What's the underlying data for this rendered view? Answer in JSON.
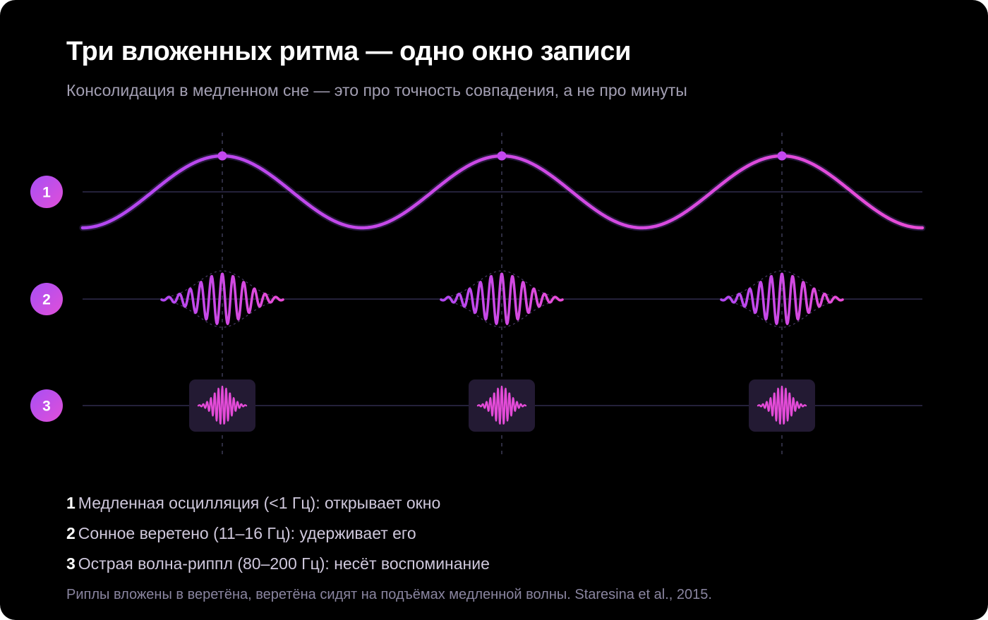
{
  "title": "Три вложенных ритма — одно окно записи",
  "subtitle": "Консолидация в медленном сне — это про точность совпадения, а не про минуты",
  "rows": [
    {
      "badge": "1"
    },
    {
      "badge": "2"
    },
    {
      "badge": "3"
    }
  ],
  "legend": [
    {
      "num": "1",
      "text": "Медленная осцилляция (<1 Гц): открывает окно"
    },
    {
      "num": "2",
      "text": "Сонное веретено (11–16 Гц): удерживает его"
    },
    {
      "num": "3",
      "text": "Острая волна-риппл (80–200 Гц): несёт воспоминание"
    }
  ],
  "footnote": "Риплы вложены в веретёна, веретёна сидят на подъёмах медленной волны. Staresina et al., 2015.",
  "colors": {
    "background": "#000000",
    "wave": "#c347f0",
    "wave_alt": "#e44bd8",
    "ripple_box": "#231a33",
    "baseline": "#24213a",
    "guide": "#3c3a55"
  }
}
